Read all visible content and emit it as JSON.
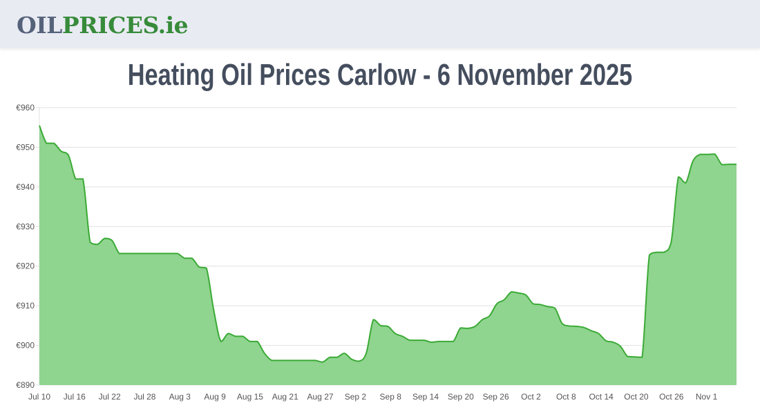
{
  "header": {
    "logo_part1": "OIL",
    "logo_part2": "PRICES.ie"
  },
  "page_title": "Heating Oil Prices Carlow - 6 November 2025",
  "colors": {
    "line": "#3aaa35",
    "fill": "#8fd48f",
    "grid": "#e0e0e0",
    "title": "#454e5e",
    "logo_dark": "#55627a",
    "logo_green": "#378b3a",
    "header_bg": "#e9ebf3"
  },
  "chart_data": {
    "type": "area",
    "title": "Heating Oil Prices Carlow - 6 November 2025",
    "xlabel": "",
    "ylabel": "",
    "ylim": [
      890,
      960
    ],
    "y_ticks": [
      "€890",
      "€900",
      "€910",
      "€920",
      "€930",
      "€940",
      "€950",
      "€960"
    ],
    "y_tick_values": [
      890,
      900,
      910,
      920,
      930,
      940,
      950,
      960
    ],
    "x_ticks": [
      "Jul 10",
      "Jul 16",
      "Jul 22",
      "Jul 28",
      "Aug 3",
      "Aug 9",
      "Aug 15",
      "Aug 21",
      "Aug 27",
      "Sep 2",
      "Sep 8",
      "Sep 14",
      "Sep 20",
      "Sep 26",
      "Oct 2",
      "Oct 8",
      "Oct 14",
      "Oct 20",
      "Oct 26",
      "Nov 1"
    ],
    "grid": true,
    "legend": "none",
    "start_date": "Jul 10",
    "end_date": "Nov 6",
    "series": [
      {
        "name": "Carlow heating oil price (€)",
        "values": [
          955.5,
          951,
          951,
          949,
          948,
          942,
          942,
          926,
          925.5,
          927,
          926.5,
          923.2,
          923.2,
          923.2,
          923.2,
          923.2,
          923.2,
          923.2,
          923.2,
          923.2,
          922,
          922,
          919.8,
          919.5,
          909,
          901,
          903,
          902.3,
          902.3,
          901,
          901,
          898,
          896.2,
          896.2,
          896.2,
          896.2,
          896.2,
          896.2,
          896.2,
          895.8,
          897,
          897,
          898,
          896.5,
          896,
          898,
          906.5,
          905,
          904.8,
          903,
          902.3,
          901.3,
          901.3,
          901.3,
          900.8,
          901,
          901,
          901,
          904.4,
          904.3,
          904.8,
          906.5,
          907.5,
          910.5,
          911.5,
          913.5,
          913.2,
          912.7,
          910.5,
          910.3,
          909.8,
          909.4,
          905.5,
          904.9,
          904.8,
          904.5,
          903.7,
          903,
          901.2,
          900.8,
          899.8,
          897.2,
          897.1,
          897,
          922.8,
          923.5,
          923.5,
          926,
          942.5,
          941,
          946.5,
          948.2,
          948.2,
          948.3,
          945.6,
          945.7,
          945.7
        ]
      }
    ]
  }
}
